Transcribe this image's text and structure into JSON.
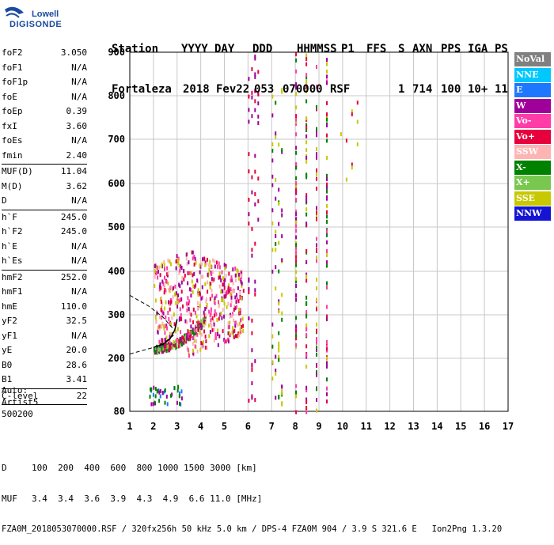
{
  "logo": {
    "line1": "Lowell",
    "line2": "DIGISONDE"
  },
  "header": {
    "labels": [
      "Station",
      "YYYY",
      "DAY",
      "DDD",
      "HHMMSS",
      "P1",
      "FFS",
      "S",
      "AXN",
      "PPS",
      "IGA",
      "PS"
    ],
    "values": [
      "Fortaleza",
      "2018",
      "Fev22",
      "053",
      "070000",
      "RSF",
      "",
      "1",
      "714",
      "100",
      "10+",
      "11"
    ]
  },
  "params": [
    {
      "name": "foF2",
      "value": "3.050"
    },
    {
      "name": "foF1",
      "value": "N/A"
    },
    {
      "name": "foF1p",
      "value": "N/A"
    },
    {
      "name": "foE",
      "value": "N/A"
    },
    {
      "name": "foEp",
      "value": "0.39"
    },
    {
      "name": "fxI",
      "value": "3.60"
    },
    {
      "name": "foEs",
      "value": "N/A"
    },
    {
      "name": "fmin",
      "value": "2.40"
    },
    {
      "sep": true
    },
    {
      "name": "MUF(D)",
      "value": "11.04"
    },
    {
      "name": "M(D)",
      "value": "3.62"
    },
    {
      "name": "D",
      "value": "N/A"
    },
    {
      "sep": true
    },
    {
      "name": "h`F",
      "value": "245.0"
    },
    {
      "name": "h`F2",
      "value": "245.0"
    },
    {
      "name": "h`E",
      "value": "N/A"
    },
    {
      "name": "h`Es",
      "value": "N/A"
    },
    {
      "sep": true
    },
    {
      "name": "hmF2",
      "value": "252.0"
    },
    {
      "name": "hmF1",
      "value": "N/A"
    },
    {
      "name": "hmE",
      "value": "110.0"
    },
    {
      "name": "yF2",
      "value": "32.5"
    },
    {
      "name": "yF1",
      "value": "N/A"
    },
    {
      "name": "yE",
      "value": "20.0"
    },
    {
      "name": "B0",
      "value": "28.6"
    },
    {
      "name": "B1",
      "value": "3.41"
    },
    {
      "sep": true
    },
    {
      "name": "C-level",
      "value": "22"
    },
    {
      "sep": true
    }
  ],
  "autoscaling": {
    "line1": "Auto:",
    "line2": "Artist5",
    "line3": "500200"
  },
  "legend": [
    {
      "label": "NoVal",
      "color": "#808080"
    },
    {
      "label": "NNE",
      "color": "#00c8ff"
    },
    {
      "label": "E",
      "color": "#1e78ff"
    },
    {
      "label": "W",
      "color": "#a0009a"
    },
    {
      "label": "Vo-",
      "color": "#ff3ca8"
    },
    {
      "label": "Vo+",
      "color": "#e6003c"
    },
    {
      "label": "SSW",
      "color": "#ffb4b4"
    },
    {
      "label": "X-",
      "color": "#008200"
    },
    {
      "label": "X+",
      "color": "#78c850"
    },
    {
      "label": "SSE",
      "color": "#c8c800"
    },
    {
      "label": "NNW",
      "color": "#1414d2"
    }
  ],
  "bottom": {
    "row1_label": "D",
    "row1_values": "100  200  400  600  800 1000 1500 3000 [km]",
    "row2_label": "MUF",
    "row2_values": "3.4  3.4  3.6  3.9  4.3  4.9  6.6 11.0 [MHz]",
    "footer": "FZA0M_2018053070000.RSF / 320fx256h 50 kHz 5.0 km / DPS-4 FZA0M 904 / 3.9 S 321.6 E   Ion2Png 1.3.20"
  },
  "chart_data": {
    "type": "scatter",
    "xlim": [
      1,
      17
    ],
    "ylim": [
      80,
      900
    ],
    "xticks": [
      "1",
      "2",
      "3",
      "4",
      "5",
      "6",
      "7",
      "8",
      "9",
      "10",
      "11",
      "12",
      "13",
      "14",
      "15",
      "16",
      "17"
    ],
    "yticks": [
      "80",
      "200",
      "300",
      "400",
      "500",
      "600",
      "700",
      "800",
      "900"
    ],
    "grid": true,
    "clusters": [
      {
        "name": "F2 trace",
        "x": [
          2.0,
          4.2
        ],
        "y": [
          230,
          290
        ],
        "colors": [
          "#008200",
          "#78c850",
          "#e6003c",
          "#a0009a"
        ]
      },
      {
        "name": "spread-F",
        "x": [
          2.0,
          5.8
        ],
        "y": [
          300,
          500
        ],
        "colors": [
          "#a0009a",
          "#ffb4b4",
          "#ff3ca8",
          "#e6003c",
          "#c8c800"
        ]
      },
      {
        "name": "low-echo",
        "x": [
          1.8,
          3.2
        ],
        "y": [
          100,
          140
        ],
        "colors": [
          "#008200",
          "#1e78ff",
          "#a0009a"
        ]
      },
      {
        "name": "interference 6 MHz",
        "x": [
          6.0,
          6.4
        ],
        "y": [
          80,
          900
        ],
        "colors": [
          "#a0009a",
          "#e6003c"
        ]
      },
      {
        "name": "interference 7 MHz",
        "x": [
          7.0,
          7.4
        ],
        "y": [
          80,
          820
        ],
        "colors": [
          "#a0009a",
          "#008200",
          "#c8c800"
        ]
      },
      {
        "name": "interference 8-9 MHz",
        "x": [
          8.0,
          9.3
        ],
        "y": [
          80,
          900
        ],
        "colors": [
          "#a0009a",
          "#e6003c",
          "#ff3ca8",
          "#008200",
          "#c8c800"
        ]
      },
      {
        "name": "interference 10 MHz",
        "x": [
          9.9,
          10.6
        ],
        "y": [
          600,
          800
        ],
        "colors": [
          "#e6003c",
          "#c8c800"
        ]
      }
    ],
    "curves": [
      {
        "name": "O-trace model",
        "points": [
          [
            2.0,
            225
          ],
          [
            2.4,
            232
          ],
          [
            2.7,
            245
          ],
          [
            2.9,
            265
          ],
          [
            3.0,
            290
          ]
        ],
        "style": "solid",
        "color": "#000000"
      },
      {
        "name": "dashed profile lower",
        "points": [
          [
            1.0,
            210
          ],
          [
            2.0,
            225
          ],
          [
            2.5,
            238
          ],
          [
            2.9,
            255
          ]
        ],
        "style": "dashed",
        "color": "#000000"
      },
      {
        "name": "dashed profile upper",
        "points": [
          [
            1.0,
            345
          ],
          [
            1.8,
            320
          ],
          [
            2.4,
            295
          ],
          [
            2.8,
            270
          ]
        ],
        "style": "dashed",
        "color": "#000000"
      }
    ]
  }
}
